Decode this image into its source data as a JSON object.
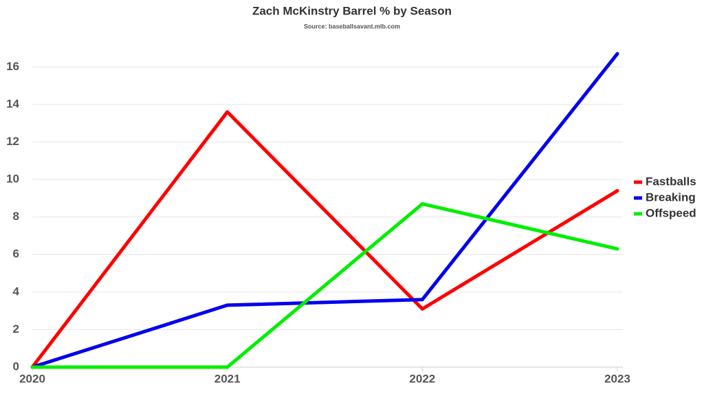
{
  "chart_data": {
    "type": "line",
    "title": "Zach McKinstry Barrel % by Season",
    "subtitle": "Source: baseballsavant.mlb.com",
    "x": [
      2020,
      2021,
      2022,
      2023
    ],
    "xlim": [
      2020,
      2023
    ],
    "xticks": [
      2020,
      2021,
      2022,
      2023
    ],
    "ylim": [
      0,
      17
    ],
    "yticks": [
      0,
      2,
      4,
      6,
      8,
      10,
      12,
      14,
      16
    ],
    "grid": true,
    "legend": "right",
    "series": [
      {
        "name": "Fastballs",
        "color": "#ff0000",
        "values": [
          0,
          13.6,
          3.1,
          9.4
        ]
      },
      {
        "name": "Breaking",
        "color": "#0000ee",
        "values": [
          0,
          3.3,
          3.6,
          16.7
        ]
      },
      {
        "name": "Offspeed",
        "color": "#00ee00",
        "values": [
          0,
          0,
          8.7,
          6.3
        ]
      }
    ]
  }
}
